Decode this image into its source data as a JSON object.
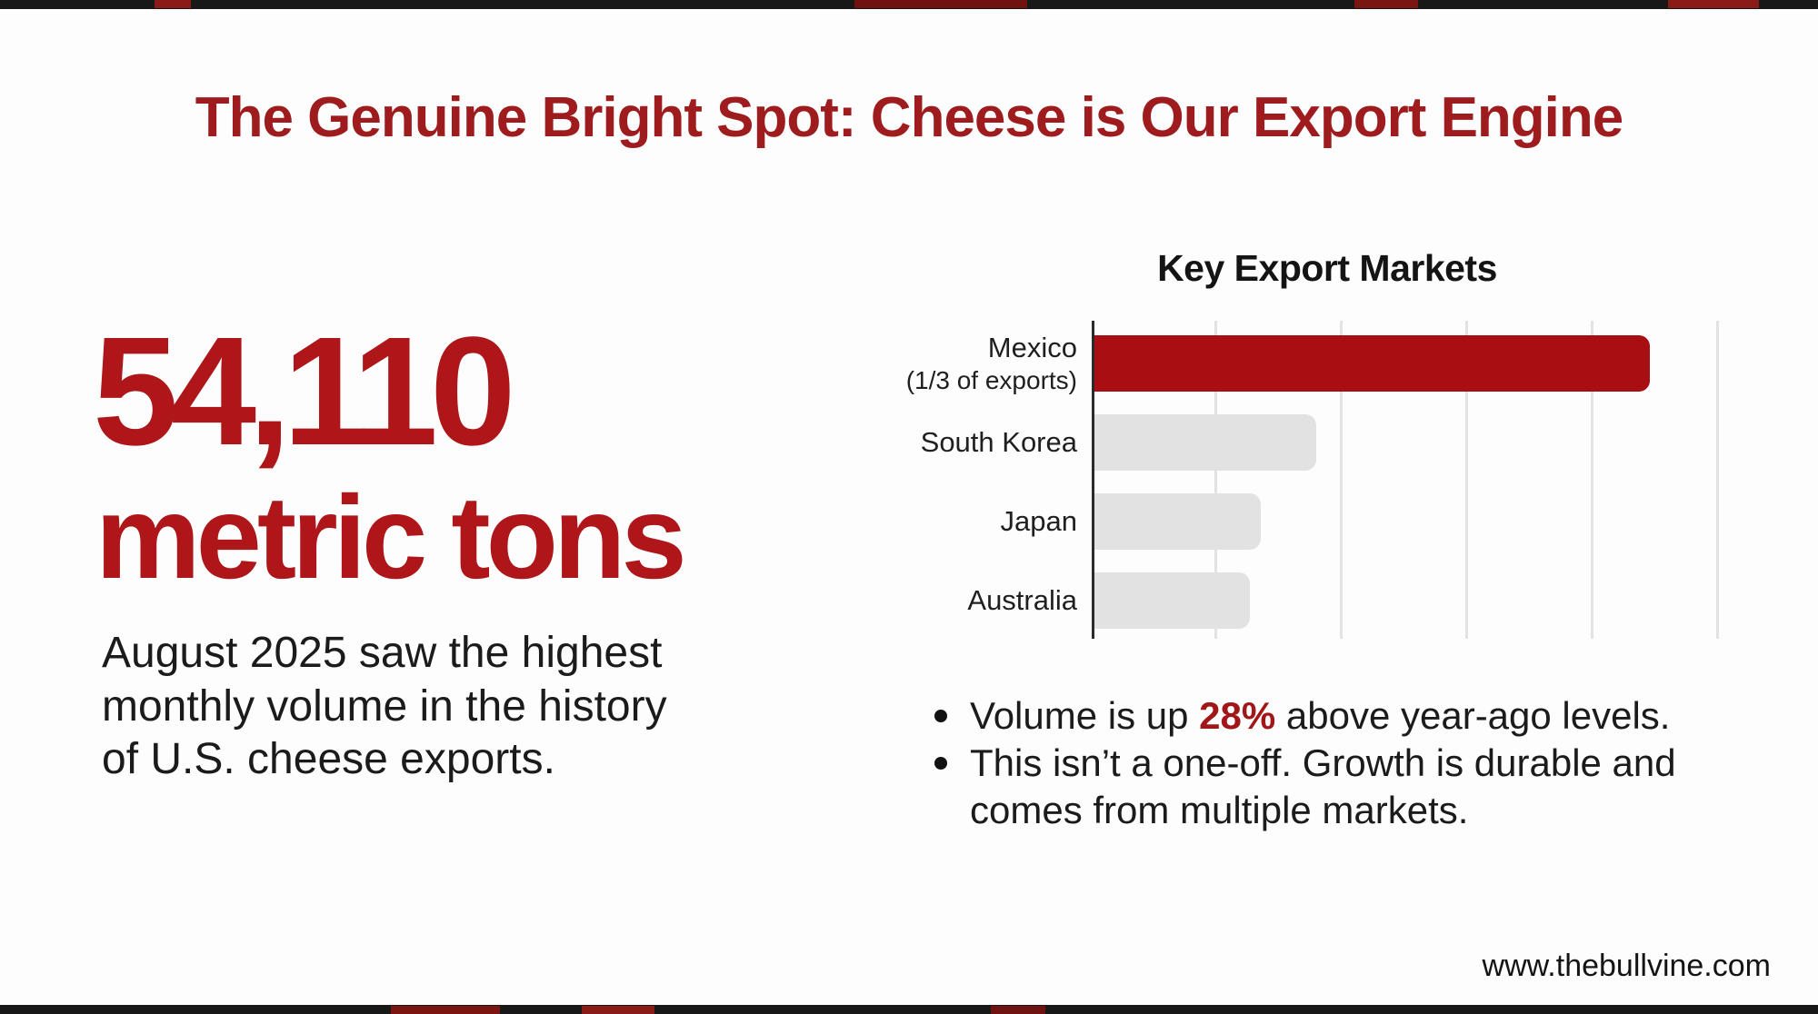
{
  "colors": {
    "brand-red": "#9E1B1E",
    "stat-red": "#AE1619",
    "accent-red": "#A11618",
    "bar-red": "#A80F12",
    "bar-gray": "#E2E2E2",
    "text-dark": "#1B1B1B",
    "axis": "#2B2B2B",
    "gridline": "#E3E3E3",
    "edge-strip": "#181818"
  },
  "header": {
    "title": "The Genuine Bright Spot: Cheese is Our Export Engine"
  },
  "stat": {
    "value": "54,110",
    "unit": "metric tons",
    "description_lines": [
      "August 2025 saw the highest",
      "monthly volume in the history",
      "of U.S. cheese exports."
    ]
  },
  "chart_data": {
    "type": "bar",
    "orientation": "horizontal",
    "title": "Key Export Markets",
    "categories": [
      "Mexico (1/3 of exports)",
      "South Korea",
      "Japan",
      "Australia"
    ],
    "label_lines": [
      [
        "Mexico",
        "(1/3 of exports)"
      ],
      [
        "South Korea"
      ],
      [
        "Japan"
      ],
      [
        "Australia"
      ]
    ],
    "values": [
      100,
      40,
      30,
      28
    ],
    "value_note": "no numeric axis shown; values are % of longest bar (Mexico = 100)",
    "xlim": [
      0,
      122
    ],
    "bar_colors": [
      "#A80F12",
      "#E2E2E2",
      "#E2E2E2",
      "#E2E2E2"
    ],
    "highlighted_category": "Mexico (1/3 of exports)",
    "grid": true,
    "legend": false
  },
  "bullets": {
    "b1": {
      "prefix": "Volume is up ",
      "highlight": "28%",
      "suffix": " above year-ago levels."
    },
    "b2": {
      "line1": "This isn’t a one-off. Growth is durable and",
      "line2": "comes from multiple markets."
    }
  },
  "footer": {
    "website": "www.thebullvine.com"
  }
}
